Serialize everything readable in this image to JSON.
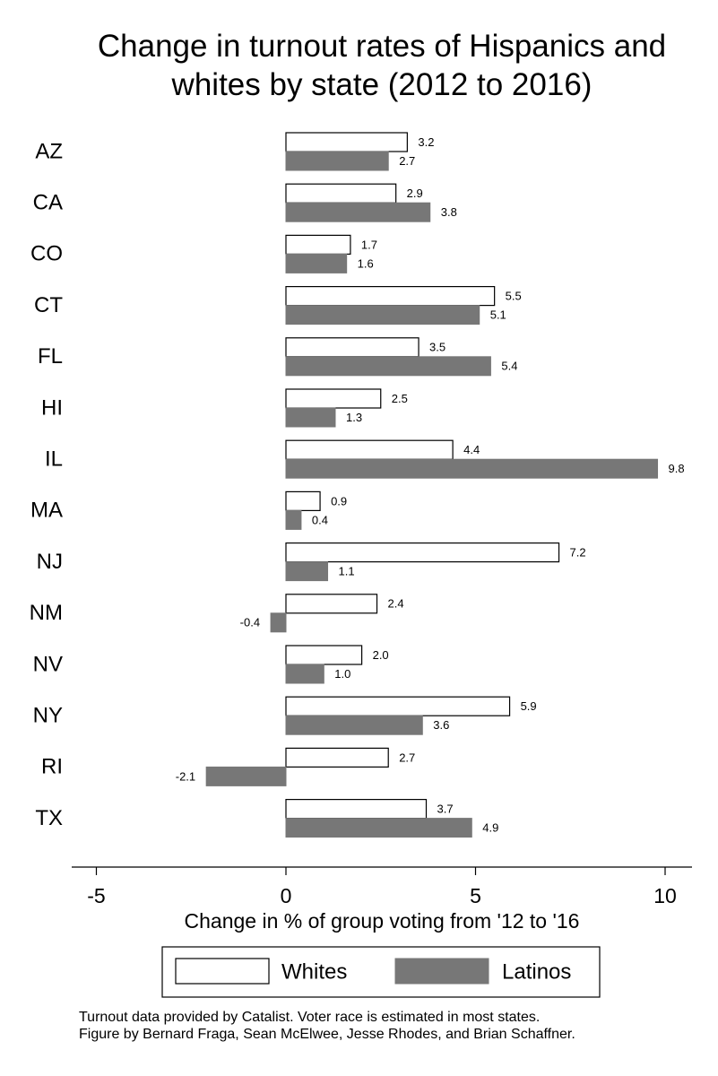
{
  "chart_data": {
    "type": "bar",
    "orientation": "horizontal",
    "title": [
      "Change in turnout rates of Hispanics and",
      "whites by state (2012 to 2016)"
    ],
    "xlabel": "Change in % of group voting from '12 to '16",
    "xlim": [
      -5,
      10
    ],
    "xticks": [
      -5,
      0,
      5,
      10
    ],
    "grid": false,
    "legend_position": "bottom",
    "categories": [
      "AZ",
      "CA",
      "CO",
      "CT",
      "FL",
      "HI",
      "IL",
      "MA",
      "NJ",
      "NM",
      "NV",
      "NY",
      "RI",
      "TX"
    ],
    "series": [
      {
        "name": "Whites",
        "color": "#ffffff",
        "values": [
          3.2,
          2.9,
          1.7,
          5.5,
          3.5,
          2.5,
          4.4,
          0.9,
          7.2,
          2.4,
          2.0,
          5.9,
          2.7,
          3.7
        ],
        "labels": [
          "3.2",
          "2.9",
          "1.7",
          "5.5",
          "3.5",
          "2.5",
          "4.4",
          "0.9",
          "7.2",
          "2.4",
          "2.0",
          "5.9",
          "2.7",
          "3.7"
        ]
      },
      {
        "name": "Latinos",
        "color": "#777777",
        "values": [
          2.7,
          3.8,
          1.6,
          5.1,
          5.4,
          1.3,
          9.8,
          0.4,
          1.1,
          -0.4,
          1.0,
          3.6,
          -2.1,
          4.9
        ],
        "labels": [
          "2.7",
          "3.8",
          "1.6",
          "5.1",
          "5.4",
          "1.3",
          "9.8",
          "0.4",
          "1.1",
          "-0.4",
          "1.0",
          "3.6",
          "-2.1",
          "4.9"
        ]
      }
    ]
  },
  "footnote": {
    "line1": "Turnout data provided by Catalist. Voter race is estimated in most states.",
    "line2": "Figure by Bernard Fraga, Sean McElwee, Jesse Rhodes, and Brian Schaffner."
  }
}
